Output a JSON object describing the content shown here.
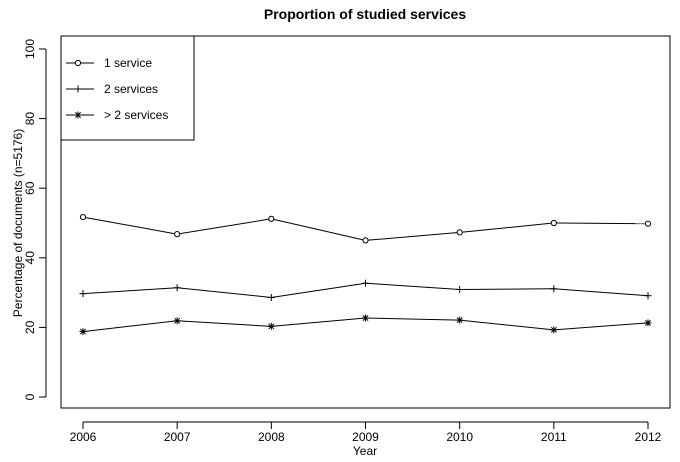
{
  "chart_data": {
    "type": "line",
    "title": "Proportion of studied services",
    "xlabel": "Year",
    "ylabel": "Percentage of documents (n=5176)",
    "x": [
      2006,
      2007,
      2008,
      2009,
      2010,
      2011,
      2012
    ],
    "x_tick_labels": [
      "2006",
      "2007",
      "2008",
      "2009",
      "2010",
      "2011",
      "2012"
    ],
    "ylim": [
      0,
      100
    ],
    "y_ticks": [
      0,
      20,
      40,
      60,
      80,
      100
    ],
    "y_tick_labels": [
      "0",
      "20",
      "40",
      "60",
      "80",
      "100"
    ],
    "grid": false,
    "legend_position": "top-left",
    "series": [
      {
        "name": "1 service",
        "marker": "circle",
        "color": "#000000",
        "values": [
          51.7,
          46.8,
          51.2,
          45.0,
          47.3,
          50.0,
          49.8
        ]
      },
      {
        "name": "2 services",
        "marker": "plus",
        "color": "#000000",
        "values": [
          29.7,
          31.4,
          28.6,
          32.7,
          30.9,
          31.1,
          29.1
        ]
      },
      {
        "name": "> 2 services",
        "marker": "asterisk",
        "color": "#000000",
        "values": [
          18.8,
          21.9,
          20.3,
          22.7,
          22.1,
          19.3,
          21.3
        ]
      }
    ]
  }
}
